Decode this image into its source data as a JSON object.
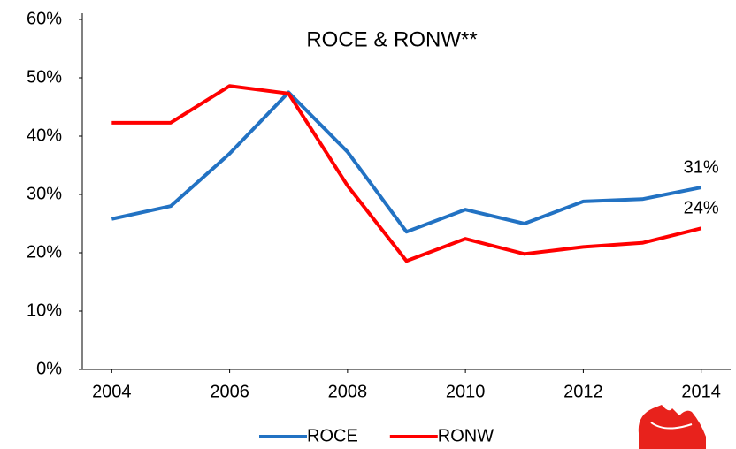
{
  "chart_data": {
    "type": "line",
    "title": "ROCE & RONW**",
    "x": [
      2004,
      2005,
      2006,
      2007,
      2008,
      2009,
      2010,
      2011,
      2012,
      2013,
      2014
    ],
    "series": [
      {
        "name": "ROCE",
        "color": "#2272c3",
        "values": [
          25.8,
          28,
          37,
          47.5,
          37.3,
          23.6,
          27.4,
          25,
          28.8,
          29.2,
          31.2
        ],
        "value_labels": [
          null,
          null,
          null,
          null,
          null,
          null,
          null,
          null,
          null,
          null,
          "31%"
        ]
      },
      {
        "name": "RONW",
        "color": "#ff0000",
        "values": [
          42.3,
          42.3,
          48.6,
          47.3,
          31.5,
          18.6,
          22.4,
          19.8,
          21,
          21.7,
          24.2
        ],
        "value_labels": [
          null,
          null,
          null,
          null,
          null,
          null,
          null,
          null,
          null,
          null,
          "24%"
        ]
      }
    ],
    "xlim": [
      2003.5,
      2014.5
    ],
    "xticks": [
      2004,
      2006,
      2008,
      2010,
      2012,
      2014
    ],
    "ylim": [
      0,
      60
    ],
    "yticks": [
      {
        "value": 0,
        "label": "0%"
      },
      {
        "value": 10,
        "label": "10%"
      },
      {
        "value": 20,
        "label": "20%"
      },
      {
        "value": 30,
        "label": "30%"
      },
      {
        "value": 40,
        "label": "40%"
      },
      {
        "value": 50,
        "label": "50%"
      },
      {
        "value": 60,
        "label": "60%"
      }
    ],
    "grid": false,
    "legend": "bottom"
  }
}
